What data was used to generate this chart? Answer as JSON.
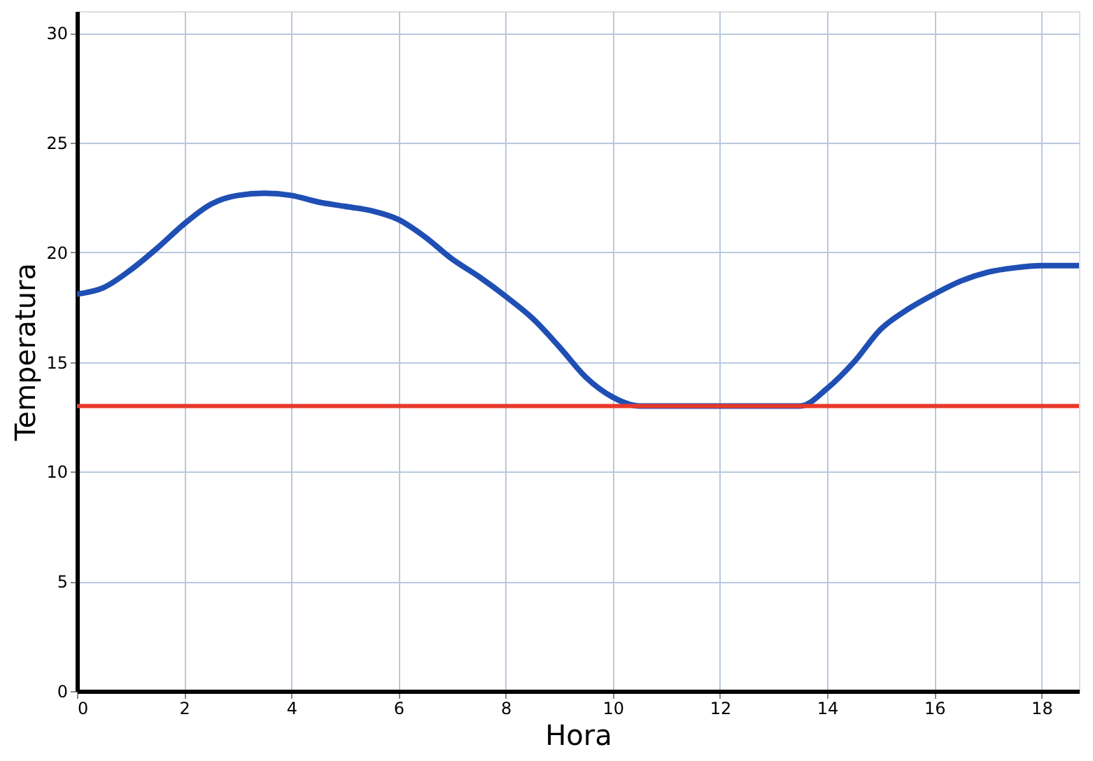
{
  "chart_data": {
    "type": "line",
    "xlabel": "Hora",
    "ylabel": "Temperatura",
    "x": [
      0,
      0.5,
      1,
      1.5,
      2,
      2.5,
      3,
      3.5,
      4,
      4.5,
      5,
      5.5,
      6,
      6.5,
      7,
      7.5,
      8,
      8.5,
      9,
      9.5,
      10,
      10.5,
      13.5,
      14,
      14.5,
      15,
      15.5,
      16,
      16.5,
      17,
      17.5,
      18,
      18.7
    ],
    "series": [
      {
        "color": "#1f4fb4",
        "values": [
          18.1,
          18.4,
          19.2,
          20.2,
          21.3,
          22.2,
          22.6,
          22.7,
          22.6,
          22.3,
          22.1,
          21.9,
          21.5,
          20.7,
          19.7,
          18.9,
          18.0,
          17.0,
          15.7,
          14.3,
          13.4,
          13,
          13,
          13.8,
          15.0,
          16.5,
          17.4,
          18.1,
          18.7,
          19.1,
          19.3,
          19.4,
          19.4
        ]
      }
    ],
    "ref_lines": [
      {
        "axis": "y",
        "value": 13,
        "color": "#e8392a"
      }
    ],
    "xlim": [
      0,
      18.7
    ],
    "ylim": [
      0,
      31
    ],
    "xticks": [
      0,
      2,
      4,
      6,
      8,
      10,
      12,
      14,
      16,
      18
    ],
    "yticks": [
      0,
      5,
      10,
      15,
      20,
      25,
      30
    ],
    "grid": true,
    "marker": "none",
    "line_style": "solid"
  }
}
